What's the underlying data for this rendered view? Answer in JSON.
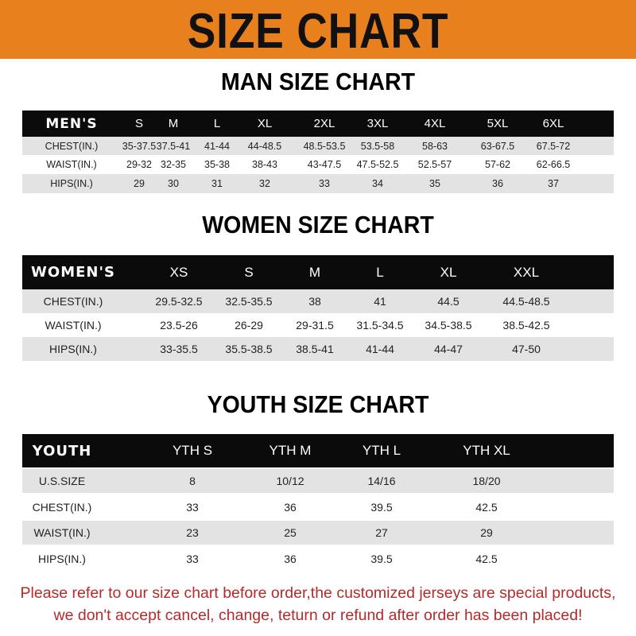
{
  "banner": {
    "title": "SIZE CHART",
    "color": "#e8801e"
  },
  "men": {
    "title": "MAN SIZE CHART",
    "header": [
      "MEN'S",
      "S",
      "M",
      "L",
      "XL",
      "2XL",
      "3XL",
      "4XL",
      "5XL",
      "6XL"
    ],
    "rows": [
      [
        "CHEST(IN.)",
        "35-37.5",
        "37.5-41",
        "41-44",
        "44-48.5",
        "48.5-53.5",
        "53.5-58",
        "58-63",
        "63-67.5",
        "67.5-72"
      ],
      [
        "WAIST(IN.)",
        "29-32",
        "32-35",
        "35-38",
        "38-43",
        "43-47.5",
        "47.5-52.5",
        "52.5-57",
        "57-62",
        "62-66.5"
      ],
      [
        "HIPS(IN.)",
        "29",
        "30",
        "31",
        "32",
        "33",
        "34",
        "35",
        "36",
        "37"
      ]
    ]
  },
  "women": {
    "title": "WOMEN SIZE CHART",
    "header": [
      "WOMEN'S",
      "XS",
      "S",
      "M",
      "L",
      "XL",
      "XXL"
    ],
    "rows": [
      [
        "CHEST(IN.)",
        "29.5-32.5",
        "32.5-35.5",
        "38",
        "41",
        "44.5",
        "44.5-48.5"
      ],
      [
        "WAIST(IN.)",
        "23.5-26",
        "26-29",
        "29-31.5",
        "31.5-34.5",
        "34.5-38.5",
        "38.5-42.5"
      ],
      [
        "HIPS(IN.)",
        "33-35.5",
        "35.5-38.5",
        "38.5-41",
        "41-44",
        "44-47",
        "47-50"
      ]
    ]
  },
  "youth": {
    "title": "YOUTH SIZE CHART",
    "header": [
      "YOUTH",
      "YTH S",
      "YTH M",
      "YTH L",
      "YTH XL"
    ],
    "rows": [
      [
        "U.S.SIZE",
        "8",
        "10/12",
        "14/16",
        "18/20"
      ],
      [
        "CHEST(IN.)",
        "33",
        "36",
        "39.5",
        "42.5"
      ],
      [
        "WAIST(IN.)",
        "23",
        "25",
        "27",
        "29"
      ],
      [
        "HIPS(IN.)",
        "33",
        "36",
        "39.5",
        "42.5"
      ]
    ]
  },
  "footer": {
    "line1": "Please refer to our size chart before order,the customized jerseys are special products,",
    "line2": "we don't accept cancel, change, teturn or refund after order has been placed!",
    "color": "#b52a2a"
  }
}
